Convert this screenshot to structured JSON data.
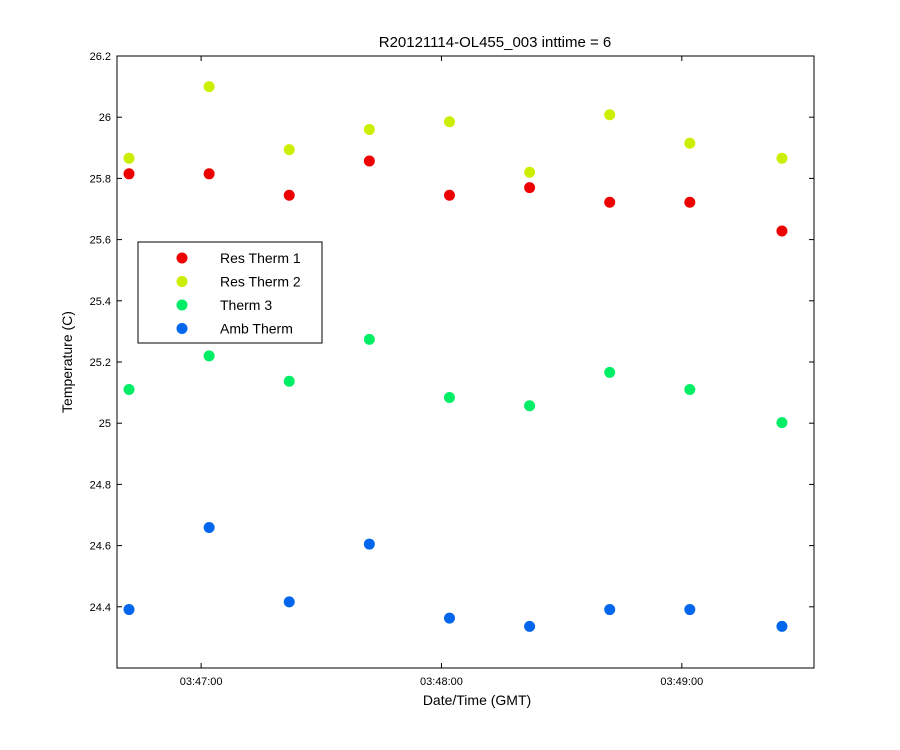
{
  "chart_data": {
    "type": "scatter",
    "title": "R20121114-OL455_003 inttime = 6",
    "xlabel": "Date/Time (GMT)",
    "ylabel": "Temperature (C)",
    "ylim": [
      24.2,
      26.2
    ],
    "yticks": [
      24.4,
      24.6,
      24.8,
      25,
      25.2,
      25.4,
      25.6,
      25.8,
      26,
      26.2
    ],
    "ytick_labels": [
      "24.4",
      "24.6",
      "24.8",
      "25",
      "25.2",
      "25.4",
      "25.6",
      "25.8",
      "26",
      "26.2"
    ],
    "xlim": [
      "03:46:39",
      "03:49:33"
    ],
    "xticks": [
      "03:47:00",
      "03:48:00",
      "03:49:00"
    ],
    "xtick_labels": [
      "03:47:00",
      "03:48:00",
      "03:49:00"
    ],
    "x": [
      "03:46:42",
      "03:47:02",
      "03:47:22",
      "03:47:42",
      "03:48:02",
      "03:48:22",
      "03:48:42",
      "03:49:02",
      "03:49:25"
    ],
    "grid": false,
    "legend_position": "left",
    "series": [
      {
        "name": "Res Therm 1",
        "color": "#ee0000",
        "values": [
          25.815,
          25.815,
          25.745,
          25.857,
          25.745,
          25.77,
          25.722,
          25.722,
          25.628
        ]
      },
      {
        "name": "Res Therm 2",
        "color": "#ccee00",
        "values": [
          25.866,
          26.1,
          25.894,
          25.96,
          25.985,
          25.82,
          26.008,
          25.915,
          25.866
        ]
      },
      {
        "name": "Therm 3",
        "color": "#00ee66",
        "values": [
          25.11,
          25.22,
          25.137,
          25.274,
          25.084,
          25.057,
          25.166,
          25.11,
          25.002
        ]
      },
      {
        "name": "Amb Therm",
        "color": "#0066ee",
        "values": [
          24.391,
          24.659,
          24.416,
          24.605,
          24.363,
          24.336,
          24.391,
          24.391,
          24.336
        ]
      }
    ]
  }
}
